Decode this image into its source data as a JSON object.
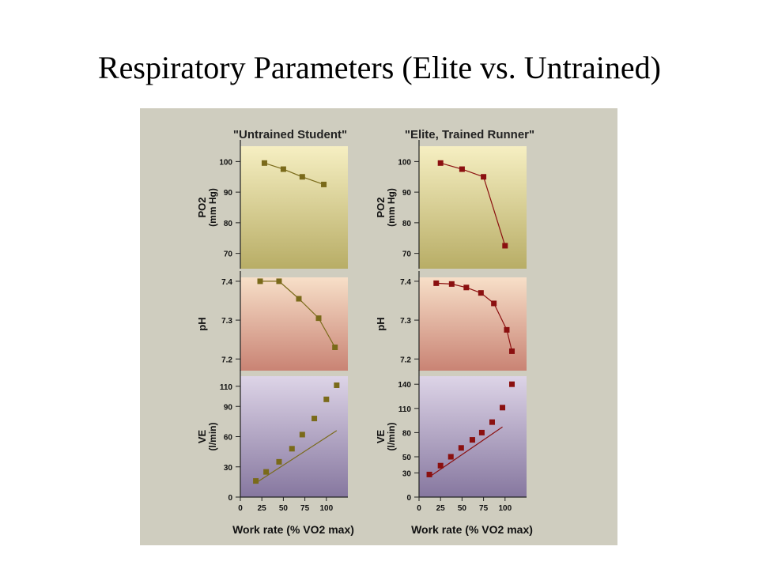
{
  "slide": {
    "title": "Respiratory Parameters (Elite vs. Untrained)"
  },
  "columns": [
    {
      "heading": "\"Untrained Student\""
    },
    {
      "heading": "\"Elite, Trained Runner\""
    }
  ],
  "rows": [
    {
      "ylabel": "PO2",
      "ylabel_sub": "(mm Hg)"
    },
    {
      "ylabel": "pH",
      "ylabel_sub": ""
    },
    {
      "ylabel": "VE",
      "ylabel_sub": "(l/min)"
    }
  ],
  "xaxis": {
    "label": "Work rate (% VO2 max)",
    "ticks": [
      0,
      25,
      50,
      75,
      100
    ]
  },
  "colors": {
    "figure_bg": "#cfcdbf",
    "untrained_marker": "#7a6a1a",
    "elite_marker": "#8b1010",
    "row1_top": "#f6efc2",
    "row1_bottom": "#b8ad66",
    "row2_top": "#f7dfc8",
    "row2_bottom": "#c98374",
    "row3_top": "#ddd4e7",
    "row3_bottom": "#86779f"
  },
  "chart_data": [
    {
      "type": "line",
      "panel": "untrained-po2",
      "ylim": [
        65,
        105
      ],
      "yticks": [
        70,
        80,
        90,
        100
      ],
      "series": [
        {
          "x": [
            28,
            50,
            72,
            97
          ],
          "y": [
            99.5,
            97.5,
            95,
            92.5
          ]
        }
      ]
    },
    {
      "type": "line",
      "panel": "elite-po2",
      "ylim": [
        65,
        105
      ],
      "yticks": [
        70,
        80,
        90,
        100
      ],
      "series": [
        {
          "x": [
            25,
            50,
            75,
            100
          ],
          "y": [
            99.5,
            97.5,
            95,
            72.5
          ]
        }
      ]
    },
    {
      "type": "line",
      "panel": "untrained-ph",
      "ylim": [
        7.17,
        7.41
      ],
      "yticks": [
        7.2,
        7.3,
        7.4
      ],
      "series": [
        {
          "x": [
            23,
            45,
            68,
            91,
            110
          ],
          "y": [
            7.4,
            7.4,
            7.355,
            7.305,
            7.23
          ]
        }
      ]
    },
    {
      "type": "line",
      "panel": "elite-ph",
      "ylim": [
        7.17,
        7.41
      ],
      "yticks": [
        7.2,
        7.3,
        7.4
      ],
      "series": [
        {
          "x": [
            20,
            38,
            55,
            72,
            87,
            102,
            108
          ],
          "y": [
            7.395,
            7.393,
            7.384,
            7.37,
            7.343,
            7.275,
            7.22
          ]
        }
      ]
    },
    {
      "type": "scatter",
      "panel": "untrained-ve",
      "ylim": [
        0,
        120
      ],
      "yticks": [
        0,
        30,
        60,
        90,
        110
      ],
      "xlim": [
        0,
        125
      ],
      "series": [
        {
          "x": [
            18,
            30,
            45,
            60,
            72,
            86,
            100,
            112
          ],
          "y": [
            16,
            25,
            35,
            48,
            62,
            78,
            97,
            111
          ]
        }
      ],
      "fit_line": {
        "x": [
          18,
          112
        ],
        "y": [
          14,
          66
        ]
      }
    },
    {
      "type": "scatter",
      "panel": "elite-ve",
      "ylim": [
        0,
        150
      ],
      "yticks": [
        0,
        30,
        50,
        80,
        110,
        140
      ],
      "xlim": [
        0,
        125
      ],
      "series": [
        {
          "x": [
            12,
            25,
            37,
            49,
            62,
            73,
            85,
            97,
            108
          ],
          "y": [
            28,
            39,
            50,
            61,
            71,
            80,
            93,
            111,
            140
          ]
        }
      ],
      "fit_line": {
        "x": [
          12,
          97
        ],
        "y": [
          25,
          87
        ]
      }
    }
  ]
}
